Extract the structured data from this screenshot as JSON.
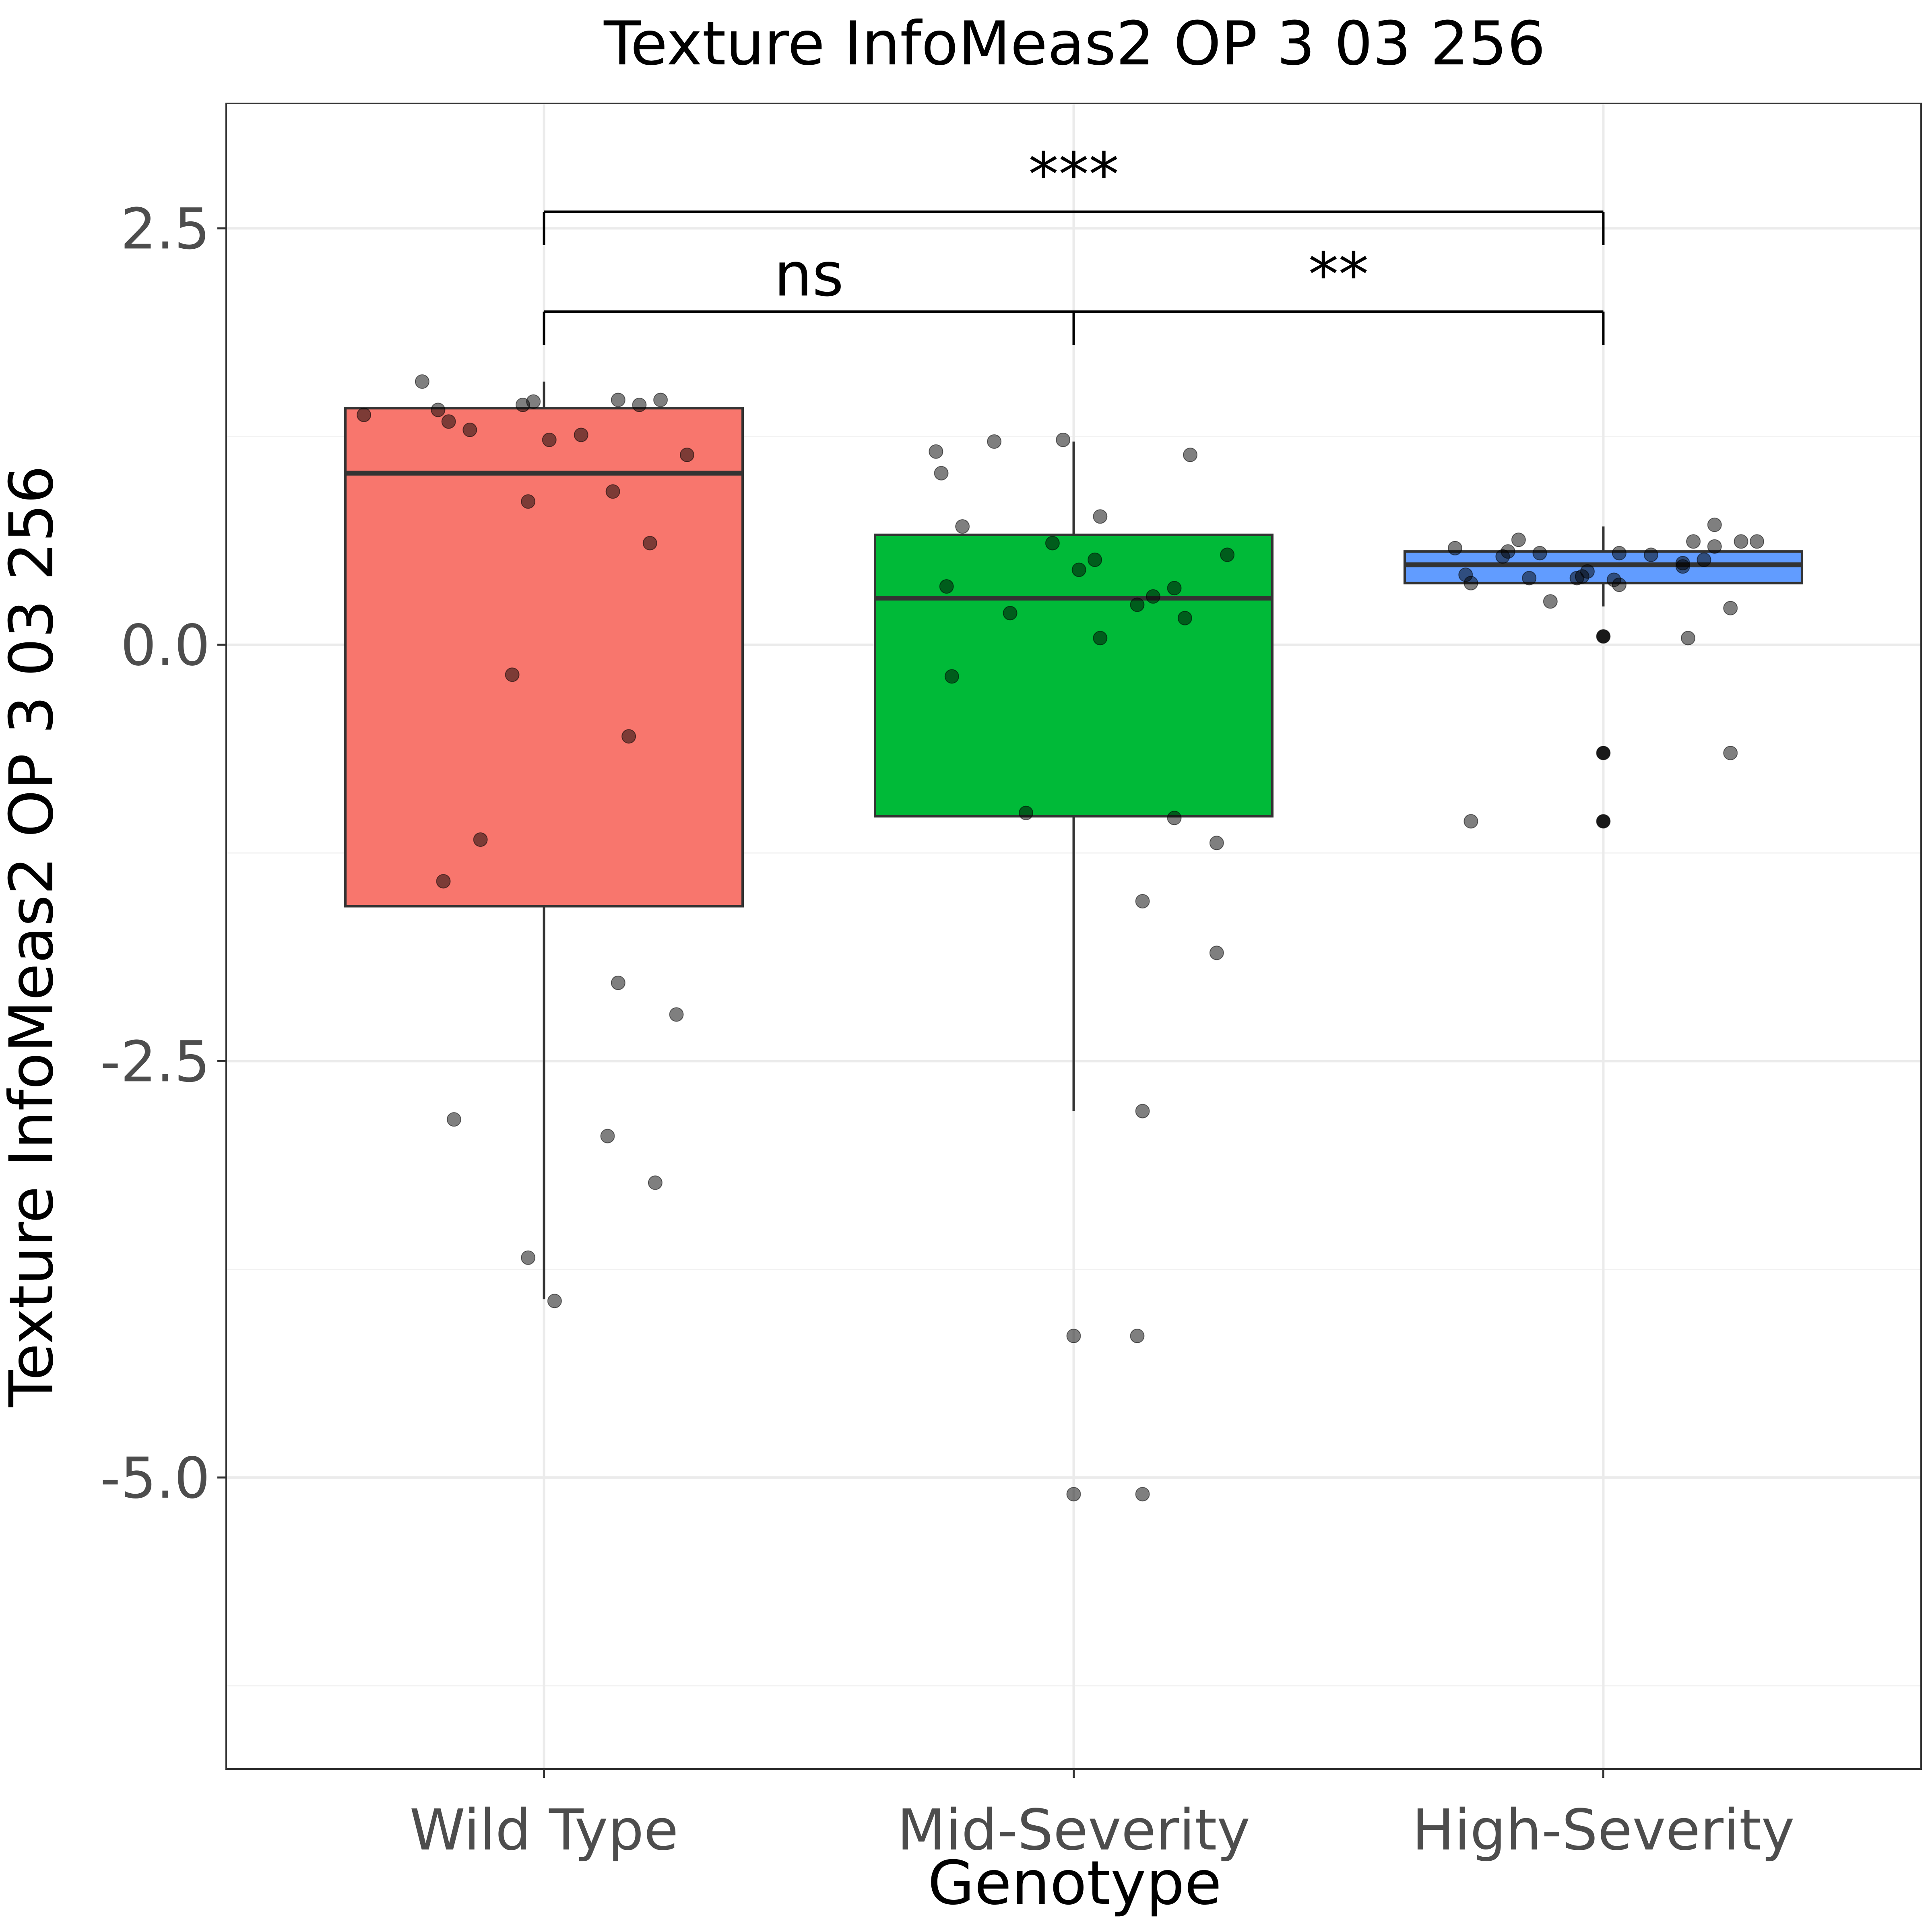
{
  "chart_data": {
    "type": "box",
    "title": "Texture InfoMeas2 OP 3 03 256",
    "xlabel": "Genotype",
    "ylabel": "Texture InfoMeas2 OP 3 03 256",
    "ylim": [
      -6.75,
      3.25
    ],
    "yticks": [
      2.5,
      0.0,
      -2.5,
      -5.0
    ],
    "ytick_labels": [
      "2.5",
      "0.0",
      "-2.5",
      "-5.0"
    ],
    "grid": true,
    "categories": [
      "Wild Type",
      "Mid-Severity",
      "High-Severity"
    ],
    "series": [
      {
        "category": "Wild Type",
        "color": "#f8766d",
        "q1": -1.57,
        "median": 1.03,
        "q3": 1.42,
        "whisker_low": -3.93,
        "whisker_high": 1.58,
        "points": [
          {
            "j": -0.34,
            "y": 1.38
          },
          {
            "j": -0.23,
            "y": 1.58
          },
          {
            "j": -0.2,
            "y": 1.41
          },
          {
            "j": -0.18,
            "y": 1.34
          },
          {
            "j": -0.14,
            "y": 1.29
          },
          {
            "j": -0.04,
            "y": 1.44
          },
          {
            "j": -0.02,
            "y": 1.46
          },
          {
            "j": 0.01,
            "y": 1.23
          },
          {
            "j": 0.07,
            "y": 1.26
          },
          {
            "j": 0.14,
            "y": 1.47
          },
          {
            "j": 0.18,
            "y": 1.44
          },
          {
            "j": 0.22,
            "y": 1.47
          },
          {
            "j": 0.27,
            "y": 1.14
          },
          {
            "j": -0.03,
            "y": 0.86
          },
          {
            "j": 0.13,
            "y": 0.92
          },
          {
            "j": 0.2,
            "y": 0.61
          },
          {
            "j": -0.06,
            "y": -0.18
          },
          {
            "j": 0.16,
            "y": -0.55
          },
          {
            "j": -0.12,
            "y": -1.17
          },
          {
            "j": -0.19,
            "y": -1.42
          },
          {
            "j": 0.14,
            "y": -2.03
          },
          {
            "j": 0.25,
            "y": -2.22
          },
          {
            "j": -0.17,
            "y": -2.85
          },
          {
            "j": 0.12,
            "y": -2.95
          },
          {
            "j": 0.21,
            "y": -3.23
          },
          {
            "j": -0.03,
            "y": -3.68
          },
          {
            "j": 0.02,
            "y": -3.94
          }
        ]
      },
      {
        "category": "Mid-Severity",
        "color": "#00ba38",
        "q1": -1.03,
        "median": 0.28,
        "q3": 0.66,
        "whisker_low": -2.8,
        "whisker_high": 1.22,
        "points": [
          {
            "j": -0.26,
            "y": 1.16
          },
          {
            "j": -0.25,
            "y": 1.03
          },
          {
            "j": -0.15,
            "y": 1.22
          },
          {
            "j": -0.02,
            "y": 1.23
          },
          {
            "j": 0.22,
            "y": 1.14
          },
          {
            "j": 0.05,
            "y": 0.77
          },
          {
            "j": -0.21,
            "y": 0.71
          },
          {
            "j": -0.04,
            "y": 0.61
          },
          {
            "j": 0.29,
            "y": 0.54
          },
          {
            "j": 0.04,
            "y": 0.51
          },
          {
            "j": 0.01,
            "y": 0.45
          },
          {
            "j": -0.24,
            "y": 0.35
          },
          {
            "j": 0.19,
            "y": 0.34
          },
          {
            "j": 0.15,
            "y": 0.29
          },
          {
            "j": 0.12,
            "y": 0.24
          },
          {
            "j": -0.12,
            "y": 0.19
          },
          {
            "j": 0.21,
            "y": 0.16
          },
          {
            "j": 0.05,
            "y": 0.04
          },
          {
            "j": -0.23,
            "y": -0.19
          },
          {
            "j": -0.09,
            "y": -1.01
          },
          {
            "j": 0.19,
            "y": -1.04
          },
          {
            "j": 0.27,
            "y": -1.19
          },
          {
            "j": 0.13,
            "y": -1.54
          },
          {
            "j": 0.27,
            "y": -1.85
          },
          {
            "j": 0.13,
            "y": -2.8
          },
          {
            "j": 0.0,
            "y": -4.15
          },
          {
            "j": 0.12,
            "y": -4.15
          },
          {
            "j": 0.0,
            "y": -5.1
          },
          {
            "j": 0.13,
            "y": -5.1
          }
        ]
      },
      {
        "category": "High-Severity",
        "color": "#619cff",
        "q1": 0.37,
        "median": 0.48,
        "q3": 0.56,
        "whisker_low": 0.23,
        "whisker_high": 0.71,
        "outliers": [
          0.05,
          -0.65,
          -1.06
        ],
        "points": [
          {
            "j": -0.28,
            "y": 0.58
          },
          {
            "j": -0.19,
            "y": 0.53
          },
          {
            "j": -0.18,
            "y": 0.56
          },
          {
            "j": -0.16,
            "y": 0.63
          },
          {
            "j": -0.12,
            "y": 0.55
          },
          {
            "j": -0.26,
            "y": 0.42
          },
          {
            "j": -0.25,
            "y": 0.37
          },
          {
            "j": -0.14,
            "y": 0.4
          },
          {
            "j": -0.1,
            "y": 0.26
          },
          {
            "j": -0.05,
            "y": 0.4
          },
          {
            "j": -0.03,
            "y": 0.44
          },
          {
            "j": -0.04,
            "y": 0.41
          },
          {
            "j": 0.02,
            "y": 0.39
          },
          {
            "j": 0.03,
            "y": 0.36
          },
          {
            "j": 0.03,
            "y": 0.55
          },
          {
            "j": 0.09,
            "y": 0.54
          },
          {
            "j": 0.15,
            "y": 0.49
          },
          {
            "j": 0.15,
            "y": 0.47
          },
          {
            "j": 0.17,
            "y": 0.62
          },
          {
            "j": 0.19,
            "y": 0.51
          },
          {
            "j": 0.21,
            "y": 0.59
          },
          {
            "j": 0.21,
            "y": 0.72
          },
          {
            "j": 0.26,
            "y": 0.62
          },
          {
            "j": 0.29,
            "y": 0.62
          },
          {
            "j": 0.24,
            "y": 0.22
          },
          {
            "j": 0.16,
            "y": 0.04
          },
          {
            "j": -0.25,
            "y": -1.06
          },
          {
            "j": 0.24,
            "y": -0.65
          },
          {
            "j": 0.0,
            "y": 0.05
          },
          {
            "j": 0.0,
            "y": -0.65
          },
          {
            "j": 0.0,
            "y": -1.06
          }
        ]
      }
    ],
    "significance": [
      {
        "from": 0,
        "to": 1,
        "y": 2.0,
        "label": "ns"
      },
      {
        "from": 1,
        "to": 2,
        "y": 2.0,
        "label": "**"
      },
      {
        "from": 0,
        "to": 2,
        "y": 2.6,
        "label": "***"
      }
    ]
  }
}
